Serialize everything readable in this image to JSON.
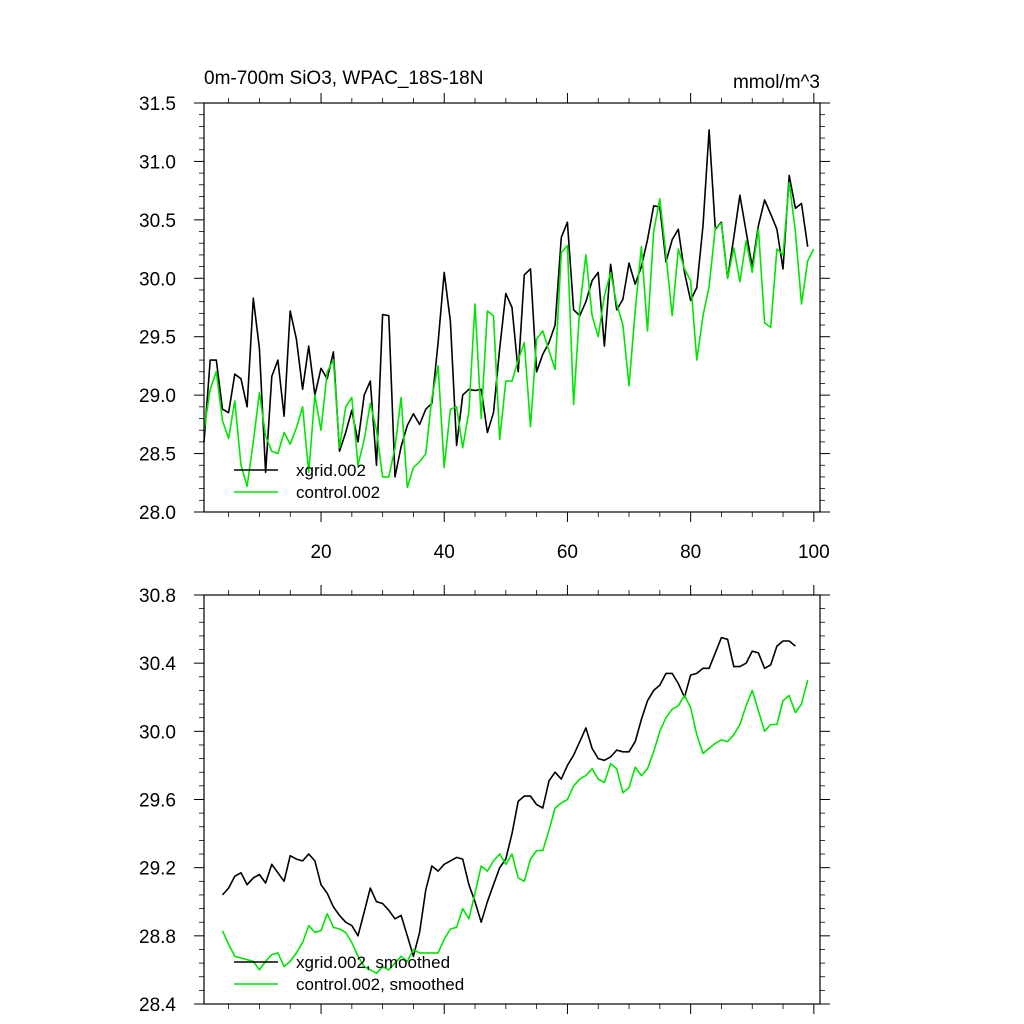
{
  "colors": {
    "xgrid": "#000000",
    "control": "#00e600",
    "frame": "#000000",
    "background": "#ffffff"
  },
  "chart_data": [
    {
      "type": "line",
      "title": "0m-700m SiO3, WPAC_18S-18N",
      "units": "mmol/m^3",
      "xlim": [
        1,
        101
      ],
      "ylim": [
        28.0,
        31.5
      ],
      "xticks": [
        20,
        40,
        60,
        80,
        100
      ],
      "yticks": [
        28.0,
        28.5,
        29.0,
        29.5,
        30.0,
        30.5,
        31.0,
        31.5
      ],
      "ytick_labels": [
        "28.0",
        "28.5",
        "29.0",
        "29.5",
        "30.0",
        "30.5",
        "31.0",
        "31.5"
      ],
      "legend_position": "bottom-left",
      "grid": false,
      "x_start": 1,
      "series": [
        {
          "name": "xgrid.002",
          "color": "#000000",
          "values": [
            28.6,
            29.3,
            29.3,
            28.88,
            28.85,
            29.18,
            29.14,
            28.9,
            29.83,
            29.4,
            28.34,
            29.16,
            29.3,
            28.82,
            29.72,
            29.48,
            29.05,
            29.42,
            29.0,
            29.23,
            29.14,
            29.37,
            28.52,
            28.68,
            28.87,
            28.6,
            29.0,
            29.12,
            28.4,
            29.69,
            29.68,
            28.3,
            28.56,
            28.74,
            28.84,
            28.75,
            28.88,
            28.93,
            29.45,
            30.05,
            29.63,
            28.57,
            29.0,
            29.05,
            29.04,
            29.05,
            28.68,
            28.85,
            29.4,
            29.87,
            29.75,
            29.2,
            30.03,
            30.08,
            29.2,
            29.35,
            29.45,
            29.6,
            30.35,
            30.48,
            29.73,
            29.68,
            29.8,
            29.98,
            30.05,
            29.42,
            30.12,
            29.73,
            29.82,
            30.13,
            29.95,
            30.1,
            30.33,
            30.62,
            30.61,
            30.14,
            30.33,
            30.42,
            30.05,
            29.81,
            29.92,
            30.45,
            31.27,
            30.42,
            30.48,
            30.0,
            30.35,
            30.71,
            30.4,
            30.1,
            30.45,
            30.67,
            30.55,
            30.42,
            30.08,
            30.88,
            30.6,
            30.64,
            30.27
          ],
          "smoothed": false
        },
        {
          "name": "control.002",
          "color": "#00e600",
          "values": [
            28.7,
            29.05,
            29.2,
            28.78,
            28.63,
            28.95,
            28.4,
            28.22,
            28.6,
            29.02,
            28.65,
            28.52,
            28.5,
            28.68,
            28.58,
            28.72,
            28.9,
            28.34,
            29.0,
            28.7,
            29.2,
            29.3,
            28.55,
            28.9,
            28.98,
            28.4,
            28.62,
            28.93,
            28.7,
            28.3,
            28.3,
            28.55,
            28.98,
            28.21,
            28.38,
            28.43,
            28.5,
            28.98,
            29.25,
            28.38,
            28.88,
            28.9,
            28.55,
            28.86,
            29.78,
            28.8,
            29.72,
            29.68,
            28.62,
            29.12,
            29.12,
            29.3,
            29.45,
            28.73,
            29.48,
            29.55,
            29.38,
            29.22,
            30.22,
            30.28,
            28.92,
            29.75,
            30.2,
            29.68,
            29.5,
            29.85,
            30.05,
            29.78,
            29.6,
            29.08,
            29.72,
            30.27,
            29.55,
            30.4,
            30.68,
            30.2,
            29.68,
            30.25,
            30.08,
            29.98,
            29.3,
            29.68,
            29.93,
            30.43,
            30.47,
            30.0,
            30.26,
            29.97,
            30.32,
            30.05,
            30.42,
            29.62,
            29.58,
            30.25,
            30.2,
            30.82,
            30.4,
            29.78,
            30.15,
            30.25
          ],
          "smoothed": false
        }
      ]
    },
    {
      "type": "line",
      "title": "",
      "xlim": [
        1,
        101
      ],
      "ylim": [
        28.4,
        30.8
      ],
      "yticks": [
        28.4,
        28.8,
        29.2,
        29.6,
        30.0,
        30.4,
        30.8
      ],
      "ytick_labels": [
        "28.4",
        "28.8",
        "29.2",
        "29.6",
        "30.0",
        "30.4",
        "30.8"
      ],
      "legend_position": "bottom-left",
      "grid": false,
      "x_start": 4,
      "series": [
        {
          "name": "xgrid.002, smoothed",
          "color": "#000000",
          "values": [
            29.04,
            29.08,
            29.15,
            29.17,
            29.1,
            29.14,
            29.16,
            29.11,
            29.22,
            29.17,
            29.12,
            29.27,
            29.25,
            29.24,
            29.28,
            29.24,
            29.1,
            29.05,
            28.97,
            28.92,
            28.88,
            28.86,
            28.8,
            28.94,
            29.08,
            29.0,
            28.99,
            28.95,
            28.9,
            28.92,
            28.8,
            28.68,
            28.82,
            29.07,
            29.21,
            29.18,
            29.22,
            29.24,
            29.26,
            29.25,
            29.1,
            29.0,
            28.88,
            29.0,
            29.1,
            29.2,
            29.25,
            29.4,
            29.59,
            29.62,
            29.62,
            29.57,
            29.55,
            29.71,
            29.76,
            29.72,
            29.8,
            29.86,
            29.94,
            30.02,
            29.9,
            29.84,
            29.83,
            29.85,
            29.89,
            29.88,
            29.88,
            29.94,
            30.07,
            30.18,
            30.24,
            30.27,
            30.34,
            30.34,
            30.28,
            30.2,
            30.33,
            30.34,
            30.37,
            30.37,
            30.46,
            30.55,
            30.54,
            30.38,
            30.38,
            30.4,
            30.47,
            30.46,
            30.37,
            30.39,
            30.5,
            30.53,
            30.53,
            30.5
          ],
          "smoothed": true
        },
        {
          "name": "control.002, smoothed",
          "color": "#00e600",
          "values": [
            28.83,
            28.75,
            28.68,
            28.67,
            28.66,
            28.65,
            28.6,
            28.65,
            28.69,
            28.7,
            28.62,
            28.65,
            28.7,
            28.76,
            28.86,
            28.82,
            28.83,
            28.93,
            28.85,
            28.84,
            28.82,
            28.76,
            28.68,
            28.62,
            28.6,
            28.58,
            28.62,
            28.6,
            28.64,
            28.68,
            28.65,
            28.72,
            28.7,
            28.7,
            28.7,
            28.7,
            28.78,
            28.84,
            28.85,
            28.96,
            28.9,
            29.05,
            29.21,
            29.18,
            29.24,
            29.28,
            29.22,
            29.28,
            29.14,
            29.12,
            29.25,
            29.3,
            29.3,
            29.42,
            29.55,
            29.58,
            29.6,
            29.68,
            29.72,
            29.74,
            29.78,
            29.72,
            29.7,
            29.81,
            29.78,
            29.64,
            29.67,
            29.79,
            29.74,
            29.78,
            29.88,
            30.0,
            30.08,
            30.13,
            30.15,
            30.21,
            30.14,
            29.98,
            29.87,
            29.9,
            29.93,
            29.95,
            29.94,
            29.98,
            30.04,
            30.15,
            30.24,
            30.12,
            30.0,
            30.04,
            30.04,
            30.18,
            30.21,
            30.11,
            30.16,
            30.3
          ],
          "smoothed": true
        }
      ]
    }
  ]
}
